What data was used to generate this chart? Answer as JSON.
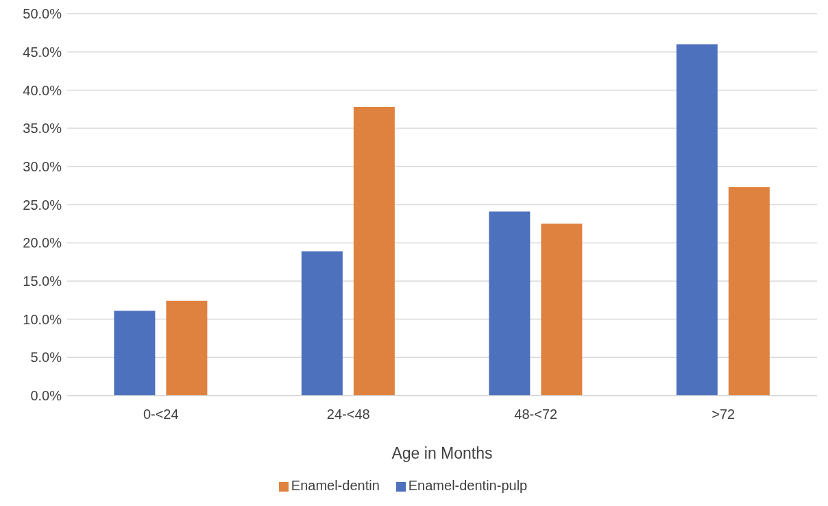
{
  "chart_data": {
    "type": "bar",
    "xlabel": "Age in Months",
    "categories": [
      "0-<24",
      "24-<48",
      "48-<72",
      ">72"
    ],
    "series": [
      {
        "name": "Enamel-dentin-pulp",
        "color": "#4e71be",
        "values": [
          11.1,
          18.9,
          24.1,
          46.0
        ]
      },
      {
        "name": "Enamel-dentin",
        "color": "#e0823f",
        "values": [
          12.4,
          37.8,
          22.5,
          27.3
        ]
      }
    ],
    "ylim": [
      0,
      50
    ],
    "yticks": [
      {
        "value": 0,
        "label": "0.0%"
      },
      {
        "value": 5,
        "label": "5.0%"
      },
      {
        "value": 10,
        "label": "10.0%"
      },
      {
        "value": 15,
        "label": "15.0%"
      },
      {
        "value": 20,
        "label": "20.0%"
      },
      {
        "value": 25,
        "label": "25.0%"
      },
      {
        "value": 30,
        "label": "30.0%"
      },
      {
        "value": 35,
        "label": "35.0%"
      },
      {
        "value": 40,
        "label": "40.0%"
      },
      {
        "value": 45,
        "label": "45.0%"
      },
      {
        "value": 50,
        "label": "50.0%"
      }
    ],
    "grid": "y",
    "legend": "bottom"
  }
}
